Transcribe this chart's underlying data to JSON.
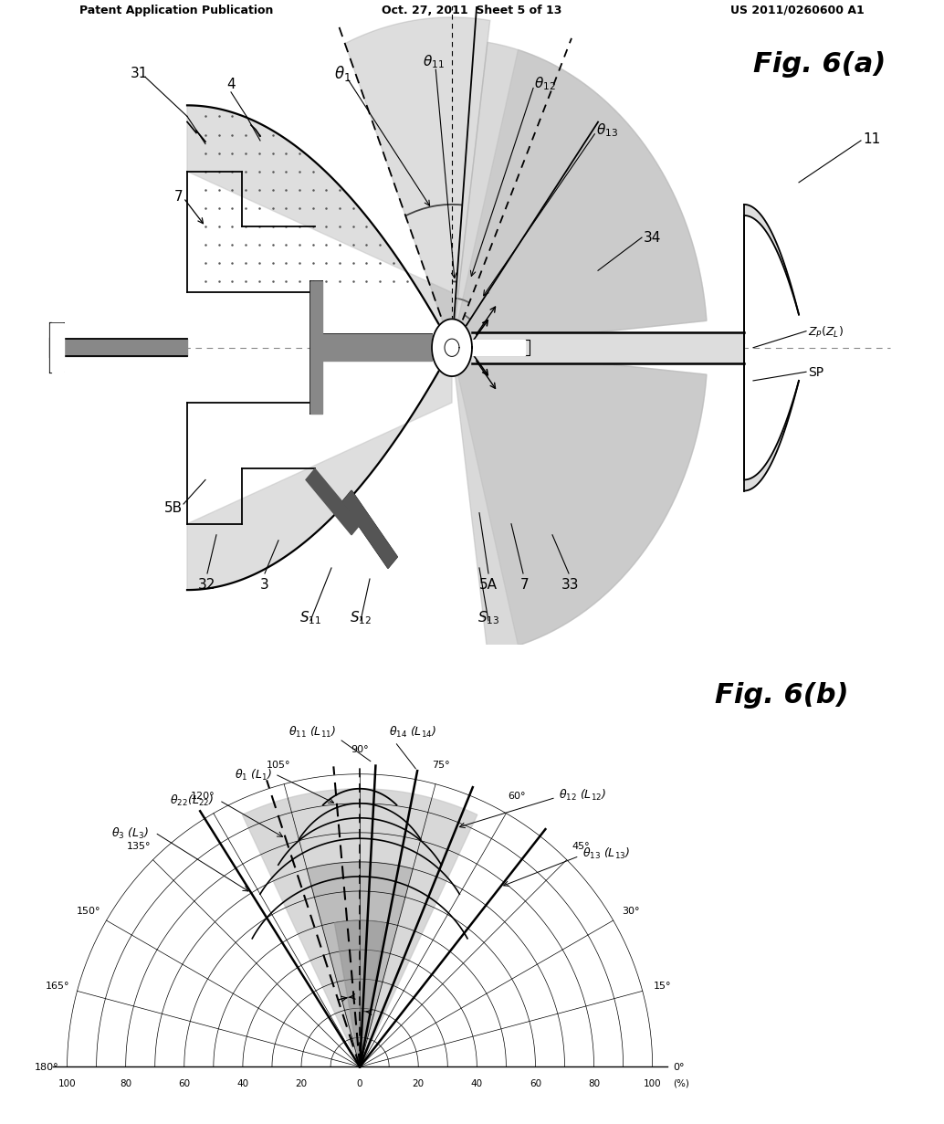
{
  "background_color": "#ffffff",
  "header_left": "Patent Application Publication",
  "header_center": "Oct. 27, 2011  Sheet 5 of 13",
  "header_right": "US 2011/0260600 A1",
  "fig_a_title": "Fig. 6(a)",
  "fig_b_title": "Fig. 6(b)"
}
